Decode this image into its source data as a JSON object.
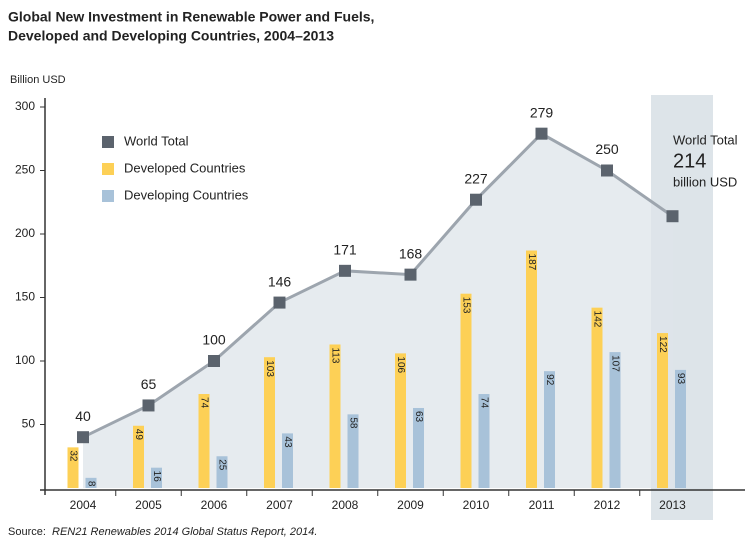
{
  "chart_data": {
    "type": "bar_line",
    "title": [
      "Global New Investment in Renewable Power and Fuels,",
      "Developed and Developing Countries, 2004–2013"
    ],
    "y_label": "Billion USD",
    "categories": [
      "2004",
      "2005",
      "2006",
      "2007",
      "2008",
      "2009",
      "2010",
      "2011",
      "2012",
      "2013"
    ],
    "series": [
      {
        "name": "World Total",
        "color": "#5b636d",
        "values": [
          40,
          65,
          100,
          146,
          171,
          168,
          227,
          279,
          250,
          214
        ]
      },
      {
        "name": "Developed Countries",
        "color": "#fdd056",
        "values": [
          32,
          49,
          74,
          103,
          113,
          106,
          153,
          187,
          142,
          122
        ]
      },
      {
        "name": "Developing Countries",
        "color": "#a8c2d9",
        "values": [
          8,
          16,
          25,
          43,
          58,
          63,
          74,
          92,
          107,
          93
        ]
      }
    ],
    "ylim": [
      0,
      300
    ],
    "yticks": [
      50,
      100,
      150,
      200,
      250,
      300
    ],
    "annotation": [
      "World Total",
      "billion USD"
    ],
    "source_label": "Source:",
    "source": "REN21 Renewables 2014 Global Status Report, 2014."
  }
}
